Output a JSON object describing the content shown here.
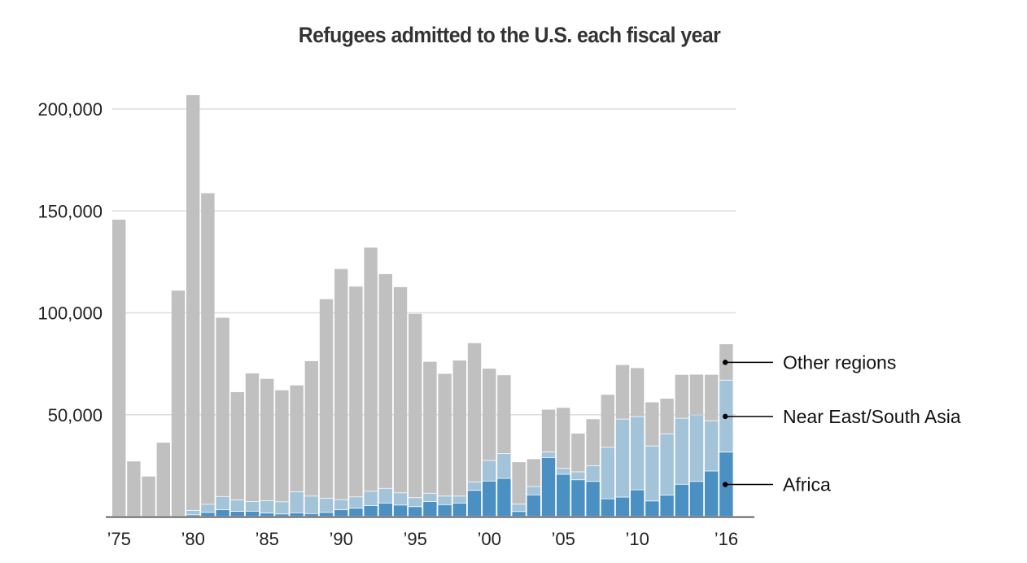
{
  "chart_data": {
    "type": "bar",
    "stacked": true,
    "title": "Refugees admitted to the U.S. each fiscal year",
    "xlabel": "",
    "ylabel": "",
    "ylim": [
      0,
      200000
    ],
    "yticks": [
      50000,
      100000,
      150000,
      200000
    ],
    "ytick_labels": [
      "50,000",
      "100,000",
      "150,000",
      "200,000"
    ],
    "grid": true,
    "xtick_labels": [
      {
        "year": 1975,
        "label": "’75"
      },
      {
        "year": 1980,
        "label": "’80"
      },
      {
        "year": 1985,
        "label": "’85"
      },
      {
        "year": 1990,
        "label": "’90"
      },
      {
        "year": 1995,
        "label": "’95"
      },
      {
        "year": 2000,
        "label": "’00"
      },
      {
        "year": 2005,
        "label": "’05"
      },
      {
        "year": 2010,
        "label": "’10"
      },
      {
        "year": 2016,
        "label": "’16"
      }
    ],
    "legend_placement": "right (labels pointing into last bar)",
    "categories": [
      1975,
      1976,
      1977,
      1978,
      1979,
      1980,
      1981,
      1982,
      1983,
      1984,
      1985,
      1986,
      1987,
      1988,
      1989,
      1990,
      1991,
      1992,
      1993,
      1994,
      1995,
      1996,
      1997,
      1998,
      1999,
      2000,
      2001,
      2002,
      2003,
      2004,
      2005,
      2006,
      2007,
      2008,
      2009,
      2010,
      2011,
      2012,
      2013,
      2014,
      2015,
      2016
    ],
    "series": [
      {
        "name": "Africa",
        "color": "#4a90c2",
        "values": [
          0,
          0,
          0,
          0,
          0,
          700,
          1900,
          3200,
          2400,
          2500,
          1600,
          1100,
          1700,
          1300,
          1900,
          3200,
          4000,
          5200,
          6500,
          5500,
          4700,
          7200,
          5700,
          6500,
          12700,
          17300,
          18600,
          2300,
          10500,
          28800,
          20600,
          17900,
          17100,
          8600,
          9400,
          13000,
          7500,
          10400,
          15700,
          17100,
          22200,
          31500
        ]
      },
      {
        "name": "Near East/South Asia",
        "color": "#a3c3d9",
        "values": [
          0,
          0,
          0,
          0,
          0,
          2200,
          4000,
          6500,
          5600,
          4700,
          6000,
          6000,
          10300,
          8600,
          7000,
          5000,
          5500,
          7100,
          7200,
          6000,
          4400,
          4100,
          4200,
          3400,
          4200,
          10100,
          12200,
          3700,
          4100,
          2800,
          2900,
          3900,
          7700,
          25300,
          38300,
          35900,
          27000,
          30100,
          32400,
          32600,
          24700,
          35300
        ]
      },
      {
        "name": "Other regions",
        "color": "#c0c0c0",
        "values": [
          145700,
          27100,
          19700,
          36300,
          110900,
          203900,
          152800,
          87900,
          53100,
          63100,
          60000,
          54900,
          52400,
          66400,
          97800,
          113300,
          103400,
          119700,
          105300,
          101100,
          90400,
          64700,
          60200,
          66700,
          68200,
          45200,
          38600,
          20700,
          13600,
          20900,
          29900,
          19000,
          23000,
          25900,
          26700,
          24000,
          21600,
          17400,
          21500,
          20000,
          22700,
          17800
        ]
      }
    ],
    "totals": [
      145700,
      27100,
      19700,
      36300,
      110900,
      206800,
      158700,
      97600,
      61100,
      70300,
      67600,
      62000,
      64400,
      76300,
      106700,
      121500,
      112900,
      132000,
      119000,
      112600,
      99500,
      76000,
      70100,
      76600,
      85100,
      72600,
      69400,
      26700,
      28200,
      52500,
      53400,
      40800,
      47800,
      59800,
      74400,
      72900,
      56100,
      57900,
      69600,
      69700,
      69600,
      84600
    ]
  },
  "legend": {
    "items": [
      {
        "label": "Other regions",
        "series": "Other regions"
      },
      {
        "label": "Near East/South Asia",
        "series": "Near East/South Asia"
      },
      {
        "label": "Africa",
        "series": "Africa"
      }
    ]
  },
  "colors": {
    "gridline": "#dddddd",
    "axis": "#333333",
    "title": "#333333"
  }
}
